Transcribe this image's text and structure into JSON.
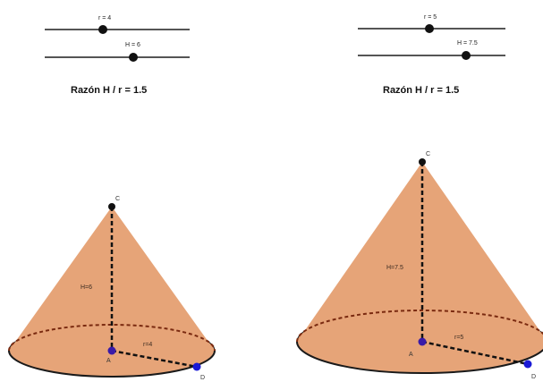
{
  "colors": {
    "cone_fill": "#e6a478",
    "base_fill": "#e29468",
    "slider_track": "#555555",
    "slider_point": "#111111",
    "point_d": "#1a1ad6",
    "point_a": "#3a1aa8",
    "edge": "#1a1a1a"
  },
  "left_panel": {
    "slider_r": {
      "label": "r = 4",
      "value": 4
    },
    "slider_h": {
      "label": "H = 6",
      "value": 6
    },
    "ratio_text": "Razón H / r = 1.5",
    "cone": {
      "apex_label": "C",
      "height_label": "H=6",
      "radius_label": "r=4",
      "center_label": "A",
      "rim_point_label": "D"
    }
  },
  "right_panel": {
    "slider_r": {
      "label": "r = 5",
      "value": 5
    },
    "slider_h": {
      "label": "H = 7.5",
      "value": 7.5
    },
    "ratio_text": "Razón H / r = 1.5",
    "cone": {
      "apex_label": "C",
      "height_label": "H=7.5",
      "radius_label": "r=5",
      "center_label": "A",
      "rim_point_label": "D"
    }
  }
}
